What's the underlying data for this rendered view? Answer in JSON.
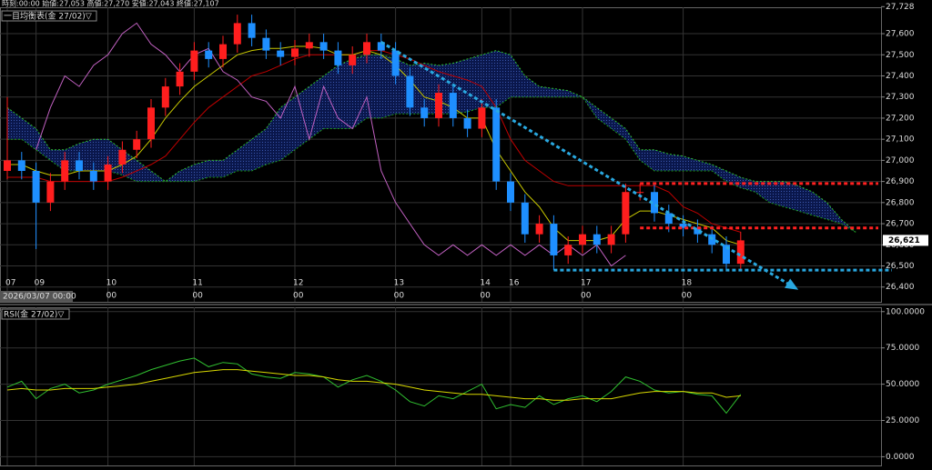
{
  "header": {
    "ohlc_text": "時刻:00:00 始値:27,053 高値:27,270 安値:27,043 終値:27,107"
  },
  "chart_data": [
    {
      "type": "candlestick",
      "title": "一目均衡表(金 27/02)▽",
      "date_label": "2026/03/07 00:00",
      "categories": [
        "07",
        null,
        "09",
        null,
        null,
        null,
        null,
        "10",
        null,
        null,
        null,
        null,
        null,
        "11",
        null,
        null,
        null,
        null,
        null,
        null,
        "12",
        null,
        null,
        null,
        null,
        null,
        null,
        "13",
        null,
        null,
        null,
        null,
        null,
        "14",
        null,
        "16",
        null,
        null,
        null,
        null,
        "17",
        null,
        null,
        null,
        null,
        null,
        null,
        "18",
        null,
        null,
        null,
        null,
        null,
        null,
        null,
        null,
        null,
        null,
        null,
        null
      ],
      "sublabels": [
        null,
        null,
        null,
        null,
        null,
        null,
        null,
        "00",
        null,
        null,
        null,
        null,
        null,
        "00",
        null,
        null,
        null,
        null,
        null,
        null,
        "00",
        null,
        null,
        null,
        null,
        null,
        null,
        "00",
        null,
        null,
        null,
        null,
        null,
        "00",
        null,
        null,
        null,
        null,
        null,
        null,
        "00",
        null,
        null,
        null,
        null,
        null,
        null,
        "00",
        null,
        null,
        null,
        null,
        null,
        null,
        null,
        null,
        null,
        null,
        null,
        null
      ],
      "candles": {
        "open": [
          26950,
          27000,
          26950,
          26800,
          26900,
          27000,
          26950,
          26900,
          26980,
          27050,
          27100,
          27250,
          27350,
          27420,
          27520,
          27480,
          27550,
          27650,
          27580,
          27520,
          27490,
          27530,
          27560,
          27520,
          27450,
          27500,
          27560,
          27520,
          27400,
          27250,
          27200,
          27320,
          27200,
          27150,
          27250,
          26900,
          26800,
          26650,
          26700,
          26550,
          26600,
          26650,
          26600,
          26650,
          26850,
          26850,
          26750,
          26700,
          26680,
          26650,
          26600,
          26510,
          null,
          null,
          null,
          null,
          null,
          null,
          null,
          null
        ],
        "high": [
          27300,
          27040,
          26990,
          26940,
          27040,
          27040,
          26990,
          27020,
          27090,
          27140,
          27290,
          27390,
          27460,
          27560,
          27560,
          27590,
          27690,
          27690,
          27620,
          27560,
          27570,
          27600,
          27600,
          27560,
          27540,
          27600,
          27600,
          27560,
          27440,
          27290,
          27360,
          27360,
          27240,
          27290,
          27290,
          26940,
          26840,
          26740,
          26740,
          26640,
          26690,
          26690,
          26690,
          26890,
          26890,
          26890,
          26790,
          26740,
          26720,
          26690,
          26640,
          26661,
          null,
          null,
          null,
          null,
          null,
          null,
          null,
          null
        ],
        "low": [
          26910,
          26910,
          26580,
          26760,
          26860,
          26910,
          26860,
          26860,
          26940,
          27010,
          27060,
          27210,
          27310,
          27380,
          27440,
          27440,
          27510,
          27540,
          27480,
          27450,
          27450,
          27490,
          27480,
          27410,
          27410,
          27460,
          27480,
          27360,
          27210,
          27160,
          27160,
          27160,
          27110,
          27110,
          26860,
          26760,
          26610,
          26610,
          26480,
          26510,
          26560,
          26560,
          26560,
          26610,
          26810,
          26710,
          26660,
          26640,
          26610,
          26560,
          26480,
          26480,
          null,
          null,
          null,
          null,
          null,
          null,
          null,
          null
        ],
        "close": [
          27000,
          26950,
          26800,
          26900,
          27000,
          26950,
          26900,
          26980,
          27050,
          27100,
          27250,
          27350,
          27420,
          27520,
          27480,
          27550,
          27650,
          27580,
          27520,
          27490,
          27530,
          27560,
          27520,
          27450,
          27500,
          27560,
          27520,
          27400,
          27250,
          27200,
          27320,
          27200,
          27150,
          27250,
          26900,
          26800,
          26650,
          26700,
          26550,
          26600,
          26650,
          26600,
          26650,
          26850,
          26850,
          26750,
          26700,
          26680,
          26650,
          26600,
          26510,
          26621,
          null,
          null,
          null,
          null,
          null,
          null,
          null,
          null
        ]
      },
      "up_color": "#ff1e1e",
      "down_color": "#1e8fff",
      "series": [
        {
          "color": "#2fc02f",
          "dash": true,
          "values": [
            27250,
            27200,
            27150,
            27050,
            27050,
            27080,
            27100,
            27100,
            27050,
            27000,
            26950,
            26900,
            26950,
            26980,
            27000,
            27000,
            27050,
            27100,
            27150,
            27250,
            27300,
            27350,
            27400,
            27450,
            27480,
            27500,
            27500,
            27480,
            27450,
            27460,
            27450,
            27460,
            27480,
            27500,
            27520,
            27500,
            27400,
            27350,
            27340,
            27330,
            27300,
            27250,
            27200,
            27150,
            27050,
            27050,
            27030,
            27020,
            27000,
            26980,
            26950,
            26920,
            26900,
            26900,
            26900,
            26880,
            26850,
            26800,
            26720,
            26660
          ]
        },
        {
          "color": "#1e9c1e",
          "dash": true,
          "values": [
            27100,
            27100,
            27050,
            27000,
            26950,
            26950,
            26950,
            26950,
            26930,
            26900,
            26900,
            26900,
            26900,
            26900,
            26920,
            26920,
            26950,
            26950,
            26980,
            27000,
            27050,
            27100,
            27150,
            27150,
            27150,
            27200,
            27200,
            27220,
            27220,
            27220,
            27220,
            27220,
            27230,
            27250,
            27250,
            27300,
            27300,
            27300,
            27300,
            27300,
            27300,
            27200,
            27150,
            27100,
            27000,
            26950,
            26950,
            26950,
            26950,
            26950,
            26900,
            26870,
            26850,
            26800,
            26780,
            26760,
            26740,
            26720,
            26700,
            26660
          ]
        },
        {
          "color": "#c00000",
          "dash": false,
          "values": [
            26920,
            26920,
            26920,
            26900,
            26900,
            26900,
            26900,
            26900,
            26920,
            26950,
            26980,
            27020,
            27100,
            27180,
            27250,
            27300,
            27350,
            27400,
            27420,
            27450,
            27480,
            27500,
            27500,
            27500,
            27500,
            27520,
            27520,
            27500,
            27480,
            27450,
            27420,
            27400,
            27380,
            27350,
            27250,
            27100,
            27000,
            26950,
            26900,
            26880,
            26880,
            26880,
            26880,
            26880,
            26880,
            26880,
            26850,
            26780,
            26750,
            26700,
            26680,
            26660,
            null,
            null,
            null,
            null,
            null,
            null,
            null,
            null
          ]
        },
        {
          "color": "#c8c800",
          "dash": false,
          "values": [
            26980,
            26980,
            26950,
            26930,
            26930,
            26950,
            26950,
            26950,
            26980,
            27020,
            27100,
            27200,
            27280,
            27350,
            27400,
            27450,
            27500,
            27520,
            27530,
            27530,
            27540,
            27540,
            27530,
            27500,
            27500,
            27520,
            27500,
            27450,
            27380,
            27300,
            27280,
            27250,
            27200,
            27200,
            27050,
            26950,
            26850,
            26780,
            26680,
            26620,
            26620,
            26620,
            26640,
            26720,
            26760,
            26760,
            26740,
            26720,
            26700,
            26680,
            26620,
            26600,
            null,
            null,
            null,
            null,
            null,
            null,
            null,
            null
          ]
        },
        {
          "color": "#c060c0",
          "dash": false,
          "values": [
            null,
            null,
            27050,
            27250,
            27400,
            27350,
            27450,
            27500,
            27600,
            27650,
            27550,
            27500,
            27420,
            27500,
            27530,
            27420,
            27380,
            27300,
            27280,
            27200,
            27350,
            27100,
            27350,
            27200,
            27150,
            27300,
            26950,
            26800,
            26700,
            26600,
            26550,
            26600,
            26550,
            26600,
            26550,
            26600,
            26550,
            26600,
            26550,
            26600,
            26550,
            26600,
            26500,
            26550,
            null,
            null,
            null,
            null,
            null,
            null,
            null,
            null,
            null,
            null,
            null,
            null,
            null,
            null,
            null,
            null
          ]
        }
      ],
      "levels": [
        {
          "value": 26890,
          "color": "#ff2020"
        },
        {
          "value": 26680,
          "color": "#ff2020"
        },
        {
          "value": 26480,
          "color": "#29a8e0"
        }
      ],
      "trendline": {
        "values": [
          27560,
          26400
        ],
        "color": "#29a8e0"
      },
      "last_price": {
        "value": 26621,
        "label": "26,621"
      },
      "ylim": [
        26330,
        27725
      ],
      "yticks": [
        {
          "value": 27728,
          "label": "27,728"
        },
        {
          "value": 27600,
          "label": "27,600"
        },
        {
          "value": 27500,
          "label": "27,500"
        },
        {
          "value": 27400,
          "label": "27,400"
        },
        {
          "value": 27300,
          "label": "27,300"
        },
        {
          "value": 27200,
          "label": "27,200"
        },
        {
          "value": 27100,
          "label": "27,100"
        },
        {
          "value": 27000,
          "label": "27,000"
        },
        {
          "value": 26900,
          "label": "26,900"
        },
        {
          "value": 26800,
          "label": "26,800"
        },
        {
          "value": 26700,
          "label": "26,700"
        },
        {
          "value": 26600,
          "label": "26,600"
        },
        {
          "value": 26500,
          "label": "26,500"
        },
        {
          "value": 26400,
          "label": "26,400"
        }
      ],
      "grid": true
    },
    {
      "type": "line",
      "title": "RSI(金 27/02)▽",
      "series": [
        {
          "color": "#30c030",
          "values": [
            48,
            52,
            40,
            47,
            50,
            44,
            46,
            50,
            53,
            56,
            60,
            63,
            66,
            68,
            62,
            65,
            64,
            57,
            55,
            54,
            58,
            57,
            55,
            48,
            53,
            56,
            52,
            46,
            38,
            35,
            42,
            40,
            45,
            50,
            33,
            36,
            34,
            42,
            36,
            40,
            42,
            38,
            45,
            55,
            52,
            46,
            44,
            45,
            43,
            42,
            30,
            43
          ]
        },
        {
          "color": "#d8d800",
          "values": [
            46,
            47,
            46,
            46,
            47,
            47,
            47,
            48,
            49,
            50,
            52,
            54,
            56,
            58,
            59,
            60,
            60,
            59,
            58,
            57,
            56,
            56,
            55,
            53,
            52,
            52,
            51,
            50,
            48,
            46,
            45,
            44,
            43,
            43,
            42,
            41,
            40,
            40,
            39,
            39,
            40,
            40,
            40,
            42,
            44,
            45,
            45,
            45,
            44,
            44,
            41,
            42
          ]
        }
      ],
      "ylim": [
        -6,
        103
      ],
      "yticks": [
        {
          "value": 100,
          "label": "100.0000"
        },
        {
          "value": 75,
          "label": "75.0000"
        },
        {
          "value": 50,
          "label": "50.0000"
        },
        {
          "value": 25,
          "label": "25.0000"
        },
        {
          "value": 0,
          "label": "0.0000"
        }
      ],
      "grid": true
    }
  ]
}
